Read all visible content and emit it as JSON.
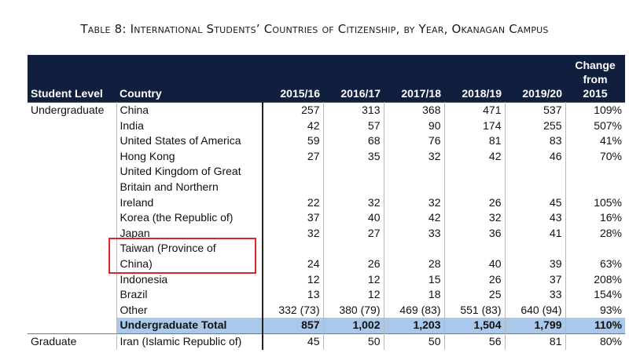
{
  "title": "Table 8: International Students’ Countries of Citizenship, by Year, Okanagan Campus",
  "headers": {
    "level": "Student Level",
    "country": "Country",
    "years": [
      "2015/16",
      "2016/17",
      "2017/18",
      "2018/19",
      "2019/20"
    ],
    "change_l1": "Change",
    "change_l2": "from",
    "change_l3": "2015"
  },
  "rows": [
    {
      "level": "Undergraduate",
      "country_lines": [
        "China"
      ],
      "values": [
        "257",
        "313",
        "368",
        "471",
        "537"
      ],
      "change": "109%"
    },
    {
      "level": "",
      "country_lines": [
        "India"
      ],
      "values": [
        "42",
        "57",
        "90",
        "174",
        "255"
      ],
      "change": "507%"
    },
    {
      "level": "",
      "country_lines": [
        "United States of America"
      ],
      "values": [
        "59",
        "68",
        "76",
        "81",
        "83"
      ],
      "change": "41%"
    },
    {
      "level": "",
      "country_lines": [
        "Hong Kong"
      ],
      "values": [
        "27",
        "35",
        "32",
        "42",
        "46"
      ],
      "change": "70%"
    },
    {
      "level": "",
      "country_lines": [
        "United Kingdom of Great",
        "Britain and Northern",
        "Ireland"
      ],
      "values": [
        "22",
        "32",
        "32",
        "26",
        "45"
      ],
      "change": "105%"
    },
    {
      "level": "",
      "country_lines": [
        "Korea (the Republic of)"
      ],
      "values": [
        "37",
        "40",
        "42",
        "32",
        "43"
      ],
      "change": "16%"
    },
    {
      "level": "",
      "country_lines": [
        "Japan"
      ],
      "values": [
        "32",
        "27",
        "33",
        "36",
        "41"
      ],
      "change": "28%"
    },
    {
      "level": "",
      "country_lines": [
        "Taiwan (Province of",
        "China)"
      ],
      "values": [
        "24",
        "26",
        "28",
        "40",
        "39"
      ],
      "change": "63%"
    },
    {
      "level": "",
      "country_lines": [
        "Indonesia"
      ],
      "values": [
        "12",
        "12",
        "15",
        "26",
        "37"
      ],
      "change": "208%"
    },
    {
      "level": "",
      "country_lines": [
        "Brazil"
      ],
      "values": [
        "13",
        "12",
        "18",
        "25",
        "33"
      ],
      "change": "154%"
    },
    {
      "level": "",
      "country_lines": [
        "Other"
      ],
      "values": [
        "332 (73)",
        "380 (79)",
        "469 (83)",
        "551 (83)",
        "640 (94)"
      ],
      "change": "93%"
    }
  ],
  "total": {
    "label": "Undergraduate Total",
    "values": [
      "857",
      "1,002",
      "1,203",
      "1,504",
      "1,799"
    ],
    "change": "110%"
  },
  "graduate_row": {
    "level": "Graduate",
    "country": "Iran (Islamic Republic of)",
    "values": [
      "45",
      "50",
      "50",
      "56",
      "81"
    ],
    "change": "80%"
  },
  "highlight_color": "#d8262c"
}
